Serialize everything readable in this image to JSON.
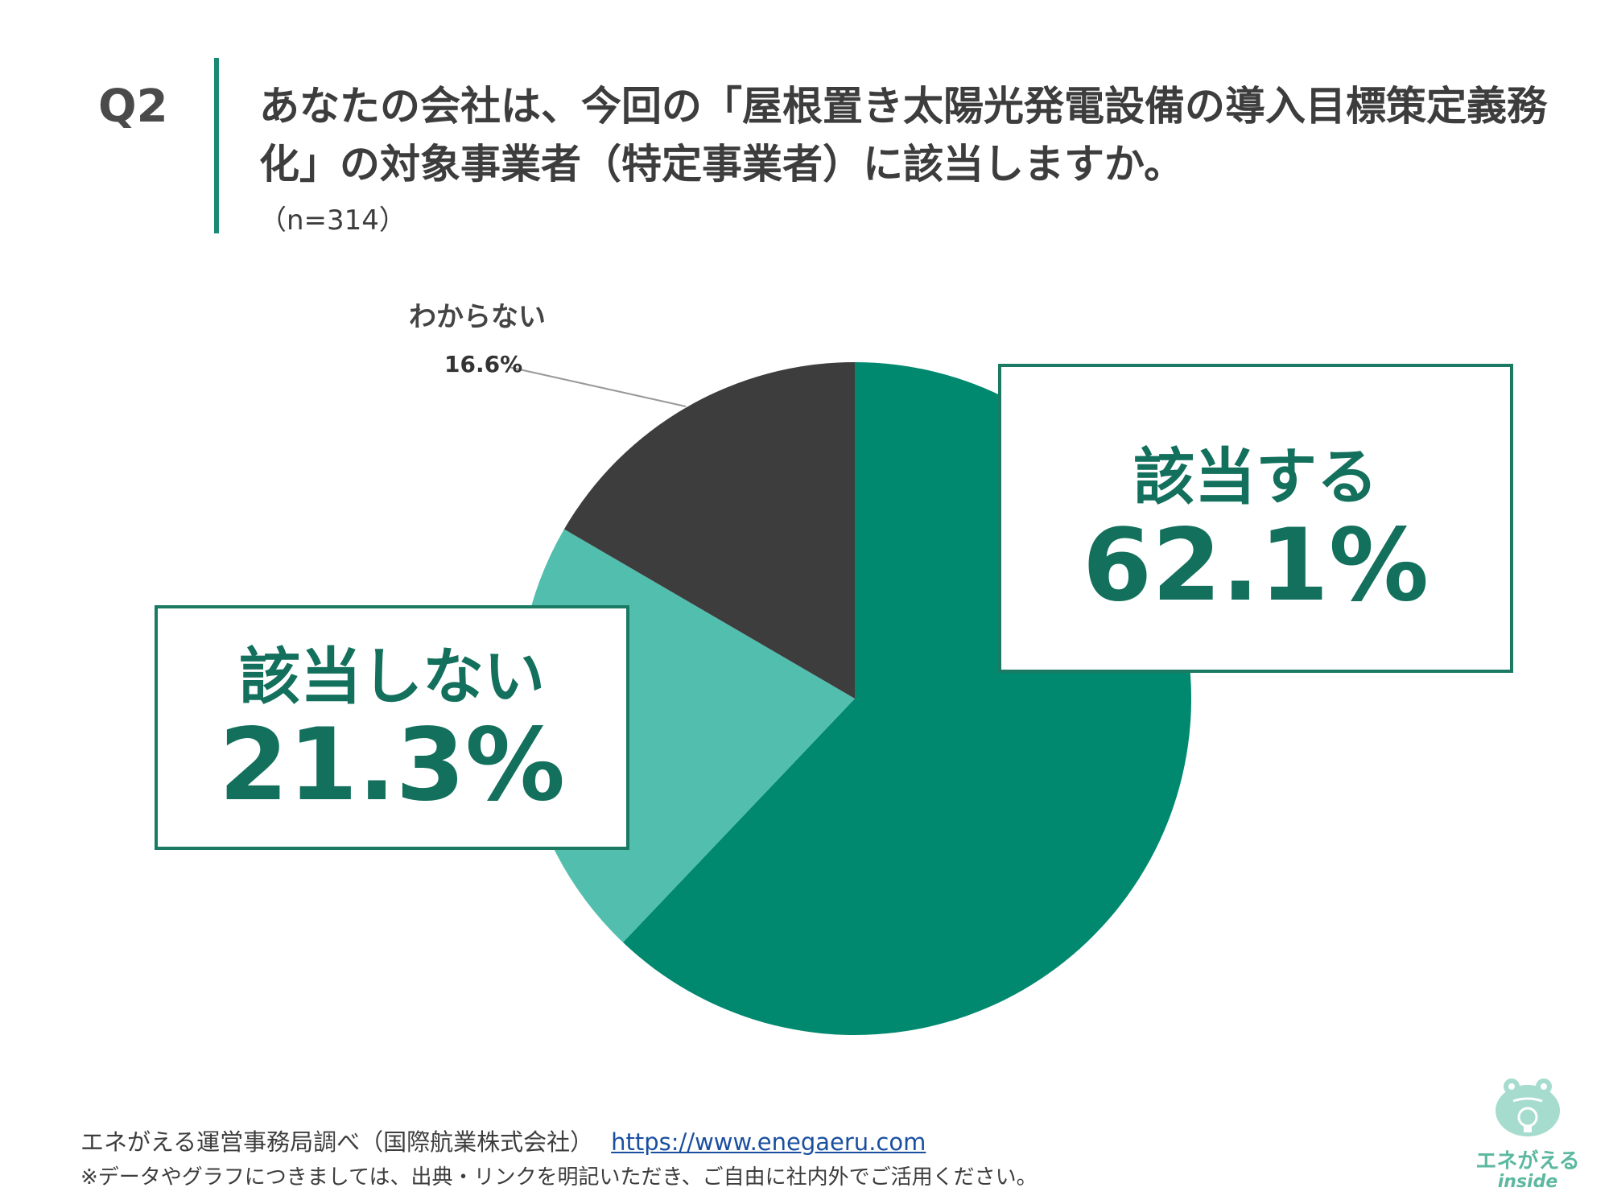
{
  "question": {
    "label": "Q2",
    "title": "あなたの会社は、今回の「屋根置き太陽光発電設備の導入目標策定義務化」の対象事業者（特定事業者）に該当しますか。",
    "sample": "（n=314）"
  },
  "chart_data": {
    "type": "pie",
    "slices": [
      {
        "label": "該当する",
        "value": 62.1,
        "display": "62.1%",
        "color": "#00896f"
      },
      {
        "label": "該当しない",
        "value": 21.3,
        "display": "21.3%",
        "color": "#52bfae"
      },
      {
        "label": "わからない",
        "value": 16.6,
        "display": "16.6%",
        "color": "#3d3d3d"
      }
    ]
  },
  "footer": {
    "source": "エネがえる運営事務局調べ（国際航業株式会社）",
    "url": "https://www.enegaeru.com",
    "note": "※データやグラフにつきましては、出典・リンクを明記いただき、ご自由に社内外でご活用ください。"
  },
  "logo": {
    "name": "エネがえる",
    "sub": "inside"
  }
}
